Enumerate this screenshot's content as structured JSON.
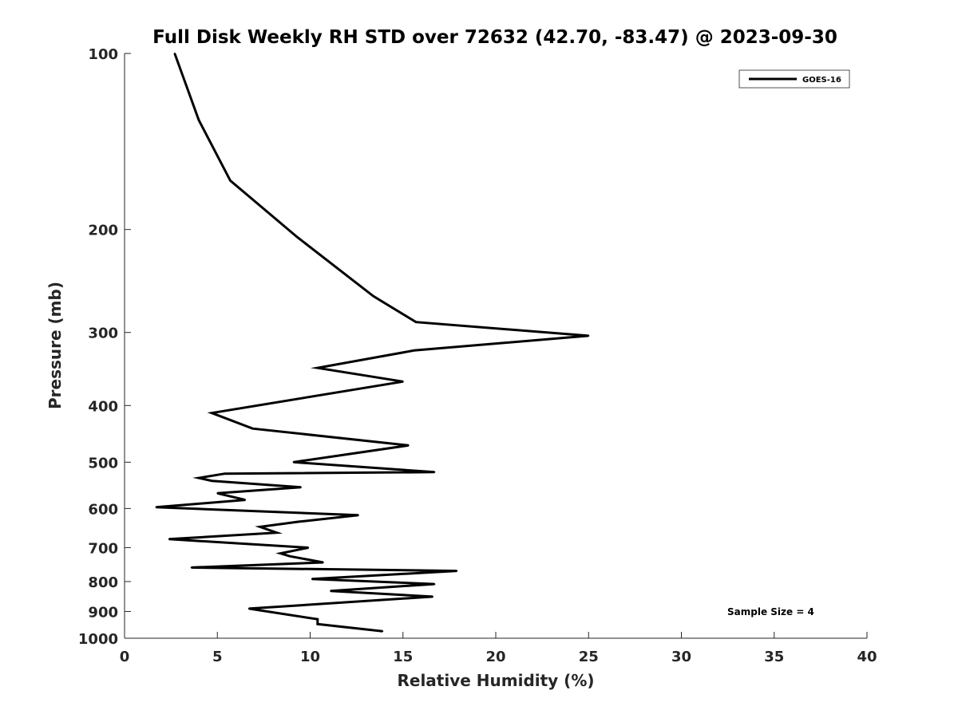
{
  "chart_data": {
    "type": "line",
    "title": "Full Disk Weekly RH STD over 72632 (42.70, -83.47) @ 2023-09-30",
    "xlabel": "Relative Humidity (%)",
    "ylabel": "Pressure (mb)",
    "xlim": [
      0,
      40
    ],
    "ylim": [
      100,
      1000
    ],
    "yscale": "log",
    "y_reversed": true,
    "x_ticks": [
      "0",
      "5",
      "10",
      "15",
      "20",
      "25",
      "30",
      "35",
      "40"
    ],
    "y_ticks": [
      "100",
      "200",
      "300",
      "400",
      "500",
      "600",
      "700",
      "800",
      "900",
      "1000"
    ],
    "grid": false,
    "legend_position": "top-right",
    "annotation": "Sample Size = 4",
    "series": [
      {
        "name": "GOES-16",
        "color": "#000000",
        "x": [
          2.7,
          4.0,
          5.7,
          9.3,
          13.4,
          15.7,
          25.0,
          15.6,
          10.4,
          15.0,
          4.7,
          6.9,
          15.3,
          9.1,
          16.7,
          5.4,
          4.0,
          4.7,
          9.5,
          5.0,
          6.5,
          1.7,
          12.6,
          9.4,
          7.3,
          8.2,
          2.4,
          9.9,
          8.4,
          8.9,
          10.7,
          3.6,
          17.9,
          10.1,
          16.7,
          11.1,
          16.6,
          6.7,
          10.4,
          10.4,
          13.9
        ],
        "y": [
          100,
          130,
          165,
          206,
          260,
          288,
          304,
          322,
          345,
          364,
          412,
          438,
          468,
          500,
          520,
          523,
          532,
          538,
          552,
          565,
          580,
          597,
          616,
          632,
          645,
          660,
          677,
          700,
          716,
          724,
          742,
          757,
          767,
          792,
          808,
          830,
          849,
          890,
          928,
          946,
          973
        ]
      }
    ]
  }
}
